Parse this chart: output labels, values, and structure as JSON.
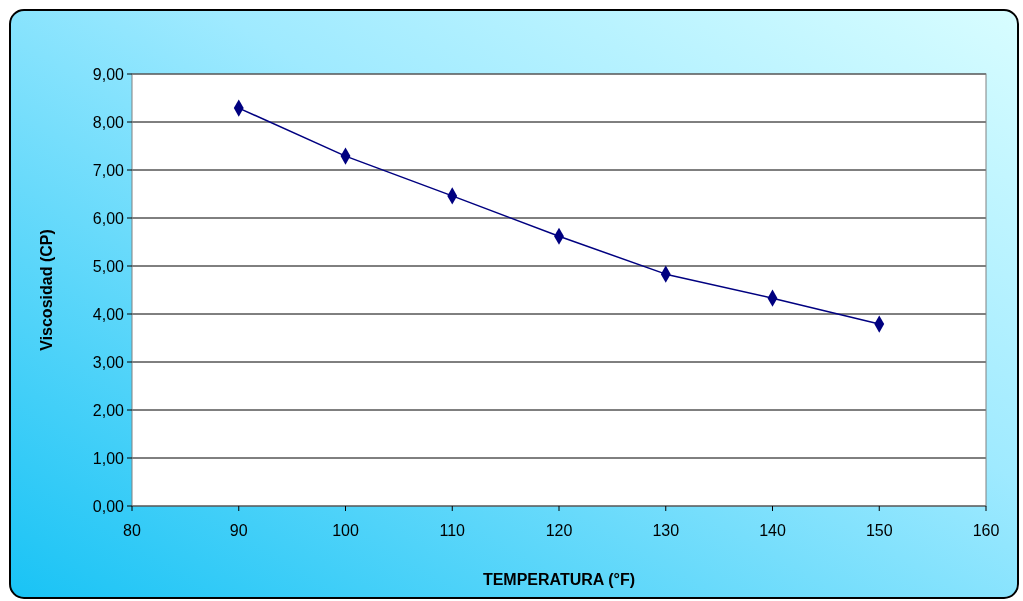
{
  "chart_data": {
    "type": "line",
    "xlabel": "TEMPERATURA (°F)",
    "ylabel": "Viscosidad (CP)",
    "x": [
      90,
      100,
      110,
      120,
      130,
      140,
      150
    ],
    "series": [
      {
        "color": "#000080",
        "values": [
          8.29,
          7.29,
          6.46,
          5.62,
          4.83,
          4.33,
          3.79
        ]
      }
    ],
    "xlim": [
      80,
      160
    ],
    "xticks": [
      80,
      90,
      100,
      110,
      120,
      130,
      140,
      150,
      160
    ],
    "ylim": [
      0,
      9
    ],
    "yticks": [
      {
        "value": 0,
        "label": "0,00"
      },
      {
        "value": 1,
        "label": "1,00"
      },
      {
        "value": 2,
        "label": "2,00"
      },
      {
        "value": 3,
        "label": "3,00"
      },
      {
        "value": 4,
        "label": "4,00"
      },
      {
        "value": 5,
        "label": "5,00"
      },
      {
        "value": 6,
        "label": "6,00"
      },
      {
        "value": 7,
        "label": "7,00"
      },
      {
        "value": 8,
        "label": "8,00"
      },
      {
        "value": 9,
        "label": "9,00"
      }
    ],
    "grid": "y",
    "marker": "diamond",
    "line_style": "solid"
  }
}
